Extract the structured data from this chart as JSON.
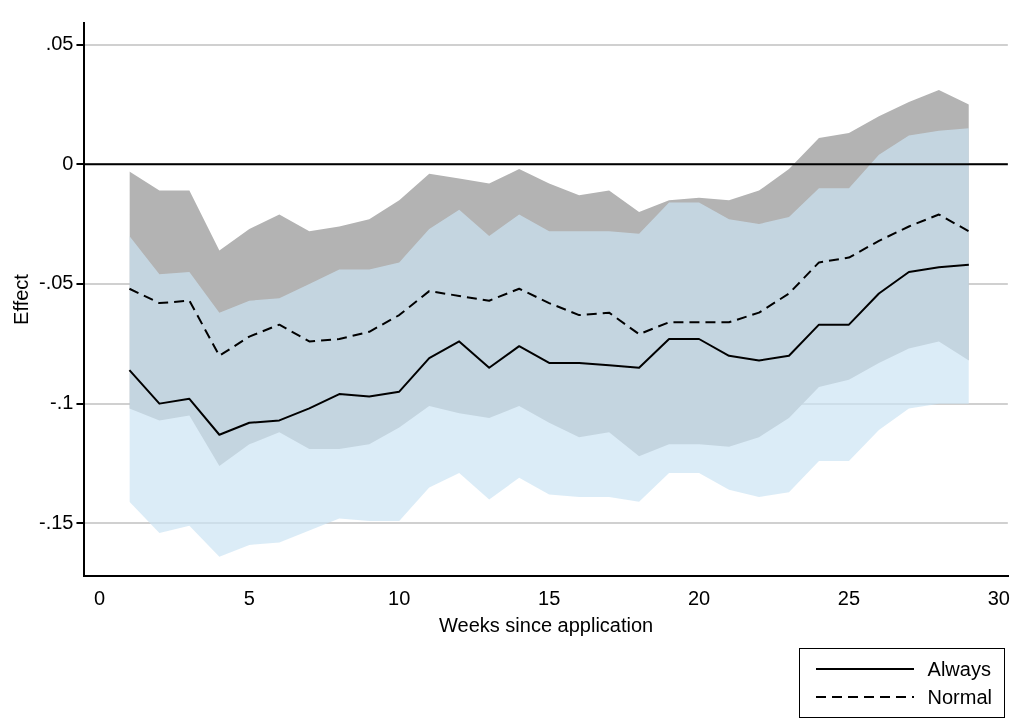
{
  "chart_data": {
    "type": "line",
    "xlabel": "Weeks since application",
    "ylabel": "Effect",
    "x": [
      1,
      2,
      3,
      4,
      5,
      6,
      7,
      8,
      9,
      10,
      11,
      12,
      13,
      14,
      15,
      16,
      17,
      18,
      19,
      20,
      21,
      22,
      23,
      24,
      25,
      26,
      27,
      28,
      29
    ],
    "series": [
      {
        "name": "Always",
        "color": "#000000",
        "line_style": "solid",
        "values": [
          -0.086,
          -0.1,
          -0.098,
          -0.113,
          -0.108,
          -0.107,
          -0.102,
          -0.096,
          -0.097,
          -0.095,
          -0.081,
          -0.074,
          -0.085,
          -0.076,
          -0.083,
          -0.083,
          -0.084,
          -0.085,
          -0.073,
          -0.073,
          -0.08,
          -0.082,
          -0.08,
          -0.067,
          -0.067,
          -0.054,
          -0.045,
          -0.043,
          -0.042
        ],
        "upper": [
          -0.03,
          -0.046,
          -0.045,
          -0.062,
          -0.057,
          -0.056,
          -0.05,
          -0.044,
          -0.044,
          -0.041,
          -0.027,
          -0.019,
          -0.03,
          -0.021,
          -0.028,
          -0.028,
          -0.028,
          -0.029,
          -0.016,
          -0.016,
          -0.023,
          -0.025,
          -0.022,
          -0.01,
          -0.01,
          0.004,
          0.012,
          0.014,
          0.015
        ],
        "lower": [
          -0.141,
          -0.154,
          -0.151,
          -0.164,
          -0.159,
          -0.158,
          -0.153,
          -0.148,
          -0.149,
          -0.149,
          -0.135,
          -0.129,
          -0.14,
          -0.131,
          -0.138,
          -0.139,
          -0.139,
          -0.141,
          -0.129,
          -0.129,
          -0.136,
          -0.139,
          -0.137,
          -0.124,
          -0.124,
          -0.111,
          -0.102,
          -0.1,
          -0.1
        ]
      },
      {
        "name": "Normal",
        "color": "#000000",
        "line_style": "dashed",
        "values": [
          -0.052,
          -0.058,
          -0.057,
          -0.08,
          -0.072,
          -0.067,
          -0.074,
          -0.073,
          -0.07,
          -0.063,
          -0.053,
          -0.055,
          -0.057,
          -0.052,
          -0.058,
          -0.063,
          -0.062,
          -0.071,
          -0.066,
          -0.066,
          -0.066,
          -0.062,
          -0.054,
          -0.041,
          -0.039,
          -0.032,
          -0.026,
          -0.021,
          -0.028
        ],
        "upper": [
          -0.003,
          -0.011,
          -0.011,
          -0.036,
          -0.027,
          -0.021,
          -0.028,
          -0.026,
          -0.023,
          -0.015,
          -0.004,
          -0.006,
          -0.008,
          -0.002,
          -0.008,
          -0.013,
          -0.011,
          -0.02,
          -0.015,
          -0.014,
          -0.015,
          -0.011,
          -0.002,
          0.011,
          0.013,
          0.02,
          0.026,
          0.031,
          0.025
        ],
        "lower": [
          -0.102,
          -0.107,
          -0.105,
          -0.126,
          -0.117,
          -0.112,
          -0.119,
          -0.119,
          -0.117,
          -0.11,
          -0.101,
          -0.104,
          -0.106,
          -0.101,
          -0.108,
          -0.114,
          -0.112,
          -0.122,
          -0.117,
          -0.117,
          -0.118,
          -0.114,
          -0.106,
          -0.093,
          -0.09,
          -0.083,
          -0.077,
          -0.074,
          -0.082
        ]
      }
    ],
    "xlim": [
      -0.5,
      30.3
    ],
    "xticks": [
      0,
      5,
      10,
      15,
      20,
      25,
      30
    ],
    "ylim": [
      -0.172,
      0.059
    ],
    "yticks": [
      {
        "value": 0.05,
        "label": ".05"
      },
      0,
      {
        "value": -0.05,
        "label": "-.05"
      },
      {
        "value": -0.1,
        "label": "-.1"
      },
      {
        "value": -0.15,
        "label": "-.15"
      }
    ],
    "ref_lines": [
      {
        "axis": "y",
        "value": 0,
        "color": "#000000"
      }
    ],
    "grid": "y",
    "legend": "bottom right",
    "marker": "none"
  }
}
